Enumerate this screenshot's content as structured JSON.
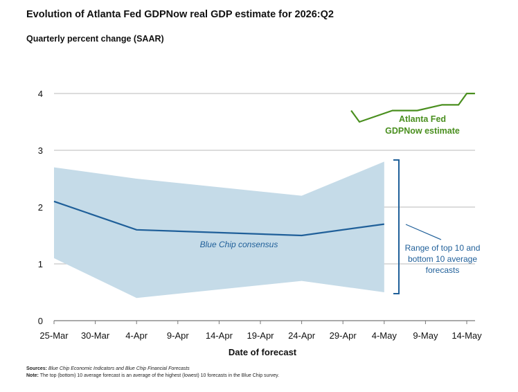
{
  "chart_data": {
    "type": "line",
    "title": "Evolution of Atlanta Fed GDPNow real GDP estimate for 2026:Q2",
    "subtitle": "Quarterly percent change (SAAR)",
    "xlabel": "Date of forecast",
    "ylabel": "",
    "ylim": [
      0,
      4
    ],
    "yticks": [
      "0",
      "1",
      "2",
      "3",
      "4"
    ],
    "x_tick_labels": [
      "25-Mar",
      "30-Mar",
      "4-Apr",
      "9-Apr",
      "14-Apr",
      "19-Apr",
      "24-Apr",
      "29-Apr",
      "4-May",
      "9-May",
      "14-May"
    ],
    "grid": true,
    "band": {
      "label": "Range of top 10 and bottom 10 average forecasts",
      "x": [
        "25-Mar",
        "4-Apr",
        "24-Apr",
        "4-May"
      ],
      "upper": [
        2.7,
        2.5,
        2.2,
        2.8
      ],
      "lower": [
        1.1,
        0.4,
        0.7,
        0.5
      ],
      "color": "#c5dbe8"
    },
    "series": [
      {
        "name": "Blue Chip consensus",
        "color": "#1f5f99",
        "x": [
          "25-Mar",
          "4-Apr",
          "24-Apr",
          "4-May"
        ],
        "values": [
          2.1,
          1.6,
          1.5,
          1.7
        ]
      },
      {
        "name": "Atlanta Fed GDPNow estimate",
        "color": "#4a8f1f",
        "x": [
          "30-Apr",
          "1-May",
          "5-May",
          "7-May",
          "8-May",
          "11-May",
          "13-May",
          "14-May",
          "15-May"
        ],
        "values": [
          3.7,
          3.5,
          3.7,
          3.7,
          3.7,
          3.8,
          3.8,
          4.0,
          4.0
        ]
      }
    ]
  },
  "annotations": {
    "bluechip_label": "Blue Chip consensus",
    "gdpnow_label_line1": "Atlanta Fed",
    "gdpnow_label_line2": "GDPNow estimate",
    "range_label_line1": "Range of top 10 and",
    "range_label_line2": "bottom 10 average",
    "range_label_line3": "forecasts"
  },
  "notes": {
    "sources_label": "Sources:",
    "sources_text": "Blue Chip Economic Indicators and Blue Chip Financial Forecasts",
    "note_label": "Note:",
    "note_text": "The top (bottom) 10 average forecast is an average of the highest (lowest) 10 forecasts in the Blue Chip survey."
  },
  "colors": {
    "gridline": "#c8c8c8",
    "axis": "#777777",
    "band": "#c5dbe8",
    "bluechip": "#1f5f99",
    "gdpnow": "#4a8f1f"
  }
}
